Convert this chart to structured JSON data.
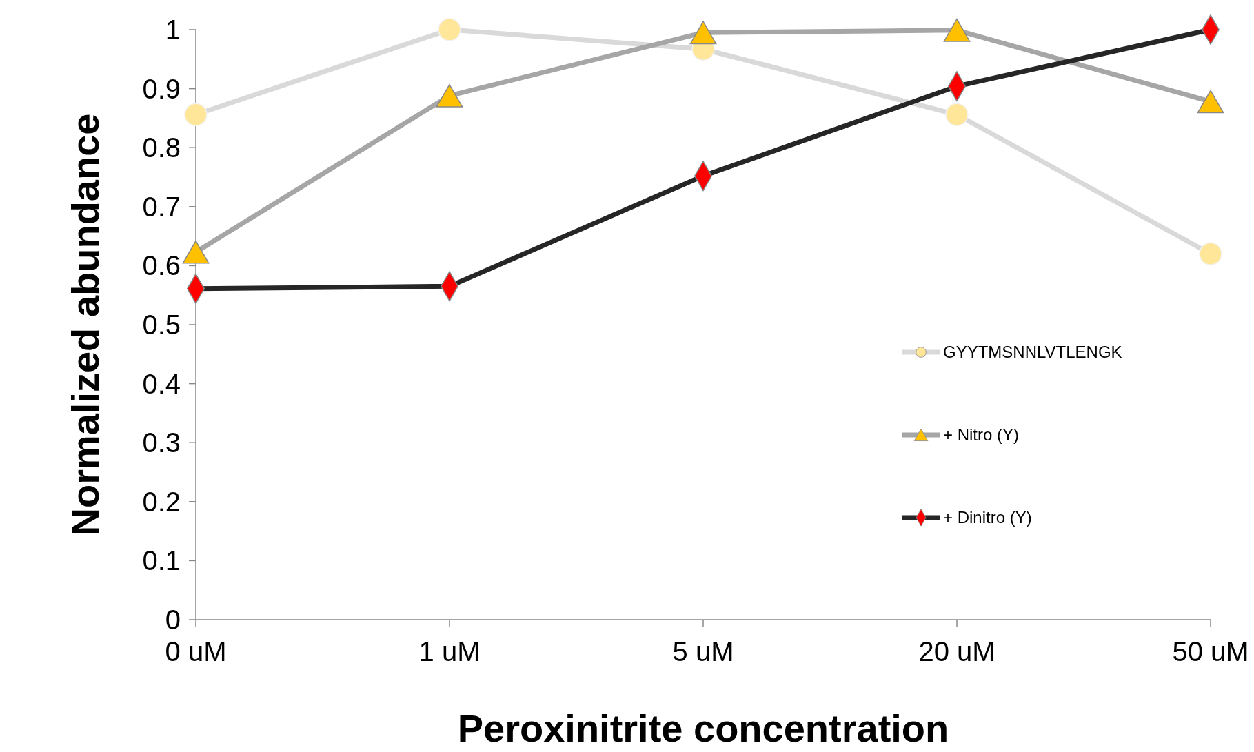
{
  "chart_data": {
    "type": "line",
    "xlabel": "Peroxinitrite concentration",
    "ylabel": "Normalized abundance",
    "categories": [
      "0 uM",
      "1 uM",
      "5 uM",
      "20 uM",
      "50 uM"
    ],
    "ylim": [
      0,
      1
    ],
    "yticks": [
      0,
      0.1,
      0.2,
      0.3,
      0.4,
      0.5,
      0.6,
      0.7,
      0.8,
      0.9,
      1
    ],
    "grid": false,
    "legend": "right",
    "line_style": "solid",
    "series": [
      {
        "name": "GYYTMSNNLVTLENGK",
        "color": "#d9d9d9",
        "marker": "circle",
        "colors": [
          "#ffe699",
          "#ffe699",
          "#ffe699",
          "#ffe699",
          "#ffe699"
        ],
        "values": [
          0.856,
          1.0,
          0.967,
          0.856,
          0.62
        ]
      },
      {
        "name": "+ Nitro (Y)",
        "color": "#a6a6a6",
        "marker": "triangle",
        "colors": [
          "#ffc000",
          "#ffc000",
          "#ffc000",
          "#ffc000",
          "#ffc000"
        ],
        "values": [
          0.623,
          0.888,
          0.995,
          0.999,
          0.878
        ]
      },
      {
        "name": "+ Dinitro (Y)",
        "color": "#262626",
        "marker": "diamond",
        "colors": [
          "#ff0000",
          "#ff0000",
          "#ff0000",
          "#ff0000",
          "#ff0000"
        ],
        "values": [
          0.561,
          0.565,
          0.752,
          0.904,
          1.0
        ]
      }
    ]
  }
}
